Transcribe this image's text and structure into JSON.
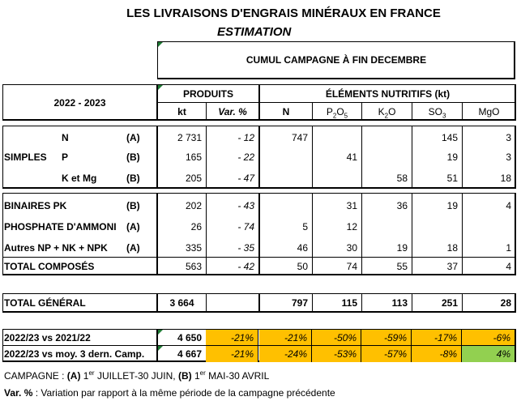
{
  "title": "LES LIVRAISONS D'ENGRAIS MINÉRAUX EN FRANCE",
  "subtitle": "ESTIMATION",
  "cumul": "CUMUL CAMPAGNE À FIN DECEMBRE",
  "year": "2022 - 2023",
  "headers": {
    "produits": "PRODUITS",
    "elements": "ÉLÉMENTS NUTRITIFS (kt)",
    "kt": "kt",
    "var": "Var. %",
    "n": "N",
    "p2o5": "P2O5",
    "k2o": "K2O",
    "so3": "SO3",
    "mgo": "MgO"
  },
  "simples_label": "SIMPLES",
  "simples": [
    {
      "name": "N",
      "code": "(A)",
      "kt": "2 731",
      "var": "- 12",
      "n": "747",
      "p": "",
      "k": "",
      "so3": "145",
      "mgo": "3"
    },
    {
      "name": "P",
      "code": "(B)",
      "kt": "165",
      "var": "- 22",
      "n": "",
      "p": "41",
      "k": "",
      "so3": "19",
      "mgo": "3"
    },
    {
      "name": "K et Mg",
      "code": "(B)",
      "kt": "205",
      "var": "- 47",
      "n": "",
      "p": "",
      "k": "58",
      "so3": "51",
      "mgo": "18"
    }
  ],
  "composes": [
    {
      "name": "BINAIRES PK",
      "code": "(B)",
      "kt": "202",
      "var": "- 43",
      "n": "",
      "p": "31",
      "k": "36",
      "so3": "19",
      "mgo": "4"
    },
    {
      "name": "PHOSPHATE D'AMMONI",
      "code": "(A)",
      "kt": "26",
      "var": "- 74",
      "n": "5",
      "p": "12",
      "k": "",
      "so3": "",
      "mgo": ""
    },
    {
      "name": "Autres NP + NK + NPK",
      "code": "(A)",
      "kt": "335",
      "var": "- 35",
      "n": "46",
      "p": "30",
      "k": "19",
      "so3": "18",
      "mgo": "1"
    }
  ],
  "total_composes": {
    "name": "TOTAL COMPOSÉS",
    "kt": "563",
    "var": "- 42",
    "n": "50",
    "p": "74",
    "k": "55",
    "so3": "37",
    "mgo": "4"
  },
  "total_general": {
    "name": "TOTAL GÉNÉRAL",
    "kt": "3 664",
    "n": "797",
    "p": "115",
    "k": "113",
    "so3": "251",
    "mgo": "28"
  },
  "comparisons": [
    {
      "label": "2022/23 vs 2021/22",
      "kt": "4 650",
      "vals": [
        "-21%",
        "-21%",
        "-50%",
        "-59%",
        "-17%",
        "-6%"
      ]
    },
    {
      "label": "2022/23 vs moy. 3 dern. Camp.",
      "kt": "4 667",
      "vals": [
        "-21%",
        "-24%",
        "-53%",
        "-57%",
        "-8%",
        "4%"
      ]
    }
  ],
  "colors": {
    "orange": "#ffc000",
    "green": "#92d050"
  },
  "footnote1": {
    "prefix": "CAMPAGNE : ",
    "a": "(A)",
    "a_num": " 1",
    "sup": "er",
    "a_text": " JUILLET-30 JUIN, ",
    "b": "(B)",
    "b_num": " 1",
    "b_text": " MAI-30 AVRIL"
  },
  "footnote2": {
    "label": "Var. %",
    "text": " : Variation par rapport à la même période de la campagne précédente"
  }
}
